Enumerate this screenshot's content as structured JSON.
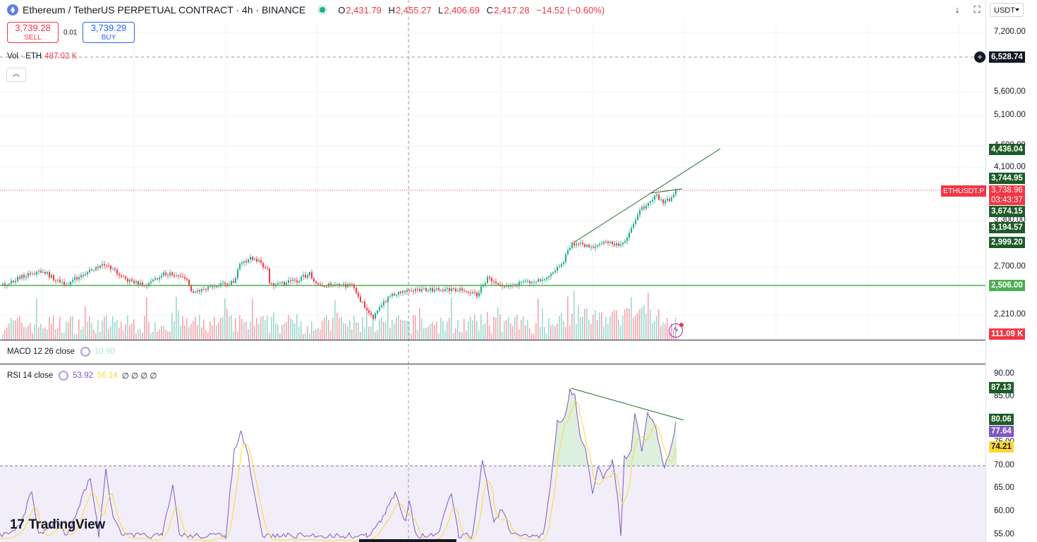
{
  "header": {
    "title": "Ethereum / TetherUS PERPETUAL CONTRACT · 4h · BINANCE",
    "ohlc": {
      "o_key": "O",
      "o": "2,431.79",
      "h_key": "H",
      "h": "2,455.27",
      "l_key": "L",
      "l": "2,406.69",
      "c_key": "C",
      "c": "2,417.28",
      "change": "−14.52 (−0.60%)"
    }
  },
  "trade": {
    "sell_price": "3,739.28",
    "sell_label": "SELL",
    "spread": "0.01",
    "buy_price": "3,739.29",
    "buy_label": "BUY"
  },
  "volume": {
    "label": "Vol · ETH",
    "value": "487.02 K"
  },
  "toolbar": {
    "currency": "USDT",
    "collapse_icon": "chevron-up-icon",
    "download_icon": "arrow-down-icon",
    "fullscreen_icon": "fullscreen-icon"
  },
  "price_axis": {
    "ticks": [
      "7,200.00",
      "5,600.00",
      "5,100.00",
      "4,600.00",
      "4,100.00",
      "3,300.00",
      "2,700.00",
      "2,210.00"
    ],
    "crosshair_price": "6,528.74",
    "labels": [
      {
        "text": "4,436.04",
        "color": "#1e5b28"
      },
      {
        "text": "3,744.95",
        "color": "#1e5b28"
      },
      {
        "text": "3,674.15",
        "color": "#1e5b28"
      },
      {
        "text": "3,194.57",
        "color": "#1e5b28"
      },
      {
        "text": "2,999.20",
        "color": "#1e5b28"
      },
      {
        "text": "2,506.00",
        "color": "#4caf50"
      },
      {
        "text": "111.09 K",
        "color": "#f23645"
      }
    ],
    "symbol": "ETHUSDT.P",
    "last_price": "3,738.96",
    "countdown": "03:43:37"
  },
  "macd": {
    "label": "MACD 12 26 close",
    "value": "10.90"
  },
  "rsi": {
    "label": "RSI 14 close",
    "value": "53.92",
    "ma_value": "56.14",
    "extras": "∅ ∅ ∅ ∅",
    "ticks": [
      "90.00",
      "85.00",
      "75.00",
      "70.00",
      "65.00",
      "60.00",
      "55.00"
    ],
    "labels": [
      {
        "text": "87.13",
        "color": "#1e5b28"
      },
      {
        "text": "80.06",
        "color": "#1e5b28"
      },
      {
        "text": "77.64",
        "color": "#7e57c2"
      },
      {
        "text": "74.21",
        "color": "#fdd835"
      }
    ]
  },
  "branding": {
    "name": "TradingView",
    "mark": "17"
  },
  "colors": {
    "up": "#22ab94",
    "down": "#f23645",
    "support": "#4caf50",
    "trend": "#1e6b2a",
    "rsi": "#7e57c2",
    "rsi_ma": "#fdd835"
  }
}
